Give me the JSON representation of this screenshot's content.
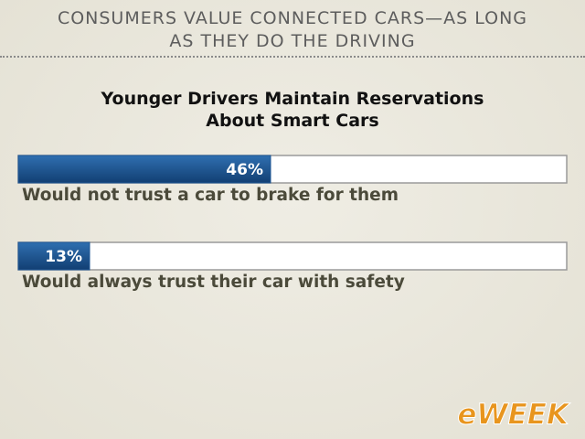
{
  "chart_data": {
    "type": "bar",
    "orientation": "horizontal",
    "title": "CONSUMERS VALUE CONNECTED CARS—AS LONG AS THEY DO THE DRIVING",
    "subtitle": "Younger Drivers Maintain Reservations About Smart Cars",
    "categories": [
      "Would not trust a car to brake for them",
      "Would always trust their car with safety"
    ],
    "values": [
      46,
      13
    ],
    "value_labels": [
      "46%",
      "13%"
    ],
    "color": "#1d5593",
    "xlim": [
      0,
      100
    ],
    "logo": "eWEEK"
  }
}
